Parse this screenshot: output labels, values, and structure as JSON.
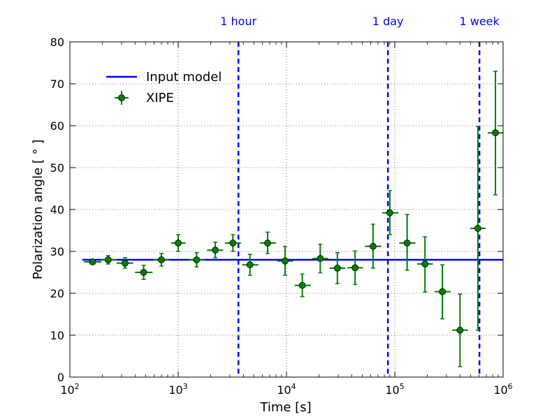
{
  "chart_data": {
    "type": "scatter",
    "xlabel": "Time [s]",
    "ylabel": "Polarization angle [ ° ]",
    "xscale": "log",
    "xlim": [
      100,
      1000000
    ],
    "ylim": [
      0,
      80
    ],
    "grid": true,
    "legend_position": "top-left",
    "x_ticks": [
      {
        "value": 100,
        "base": "10",
        "exp": "2"
      },
      {
        "value": 1000,
        "base": "10",
        "exp": "3"
      },
      {
        "value": 10000,
        "base": "10",
        "exp": "4"
      },
      {
        "value": 100000,
        "base": "10",
        "exp": "5"
      },
      {
        "value": 1000000,
        "base": "10",
        "exp": "6"
      }
    ],
    "y_ticks": [
      "0",
      "10",
      "20",
      "30",
      "40",
      "50",
      "60",
      "70",
      "80"
    ],
    "model": {
      "name": "Input model",
      "y": 28,
      "x_range": [
        130,
        1000000
      ],
      "color": "#0000ff"
    },
    "series": [
      {
        "name": "XIPE",
        "color": "#007f00",
        "points": [
          {
            "x": 162,
            "y": 27.5,
            "xlo": 135,
            "xhi": 195,
            "ylo": 27.0,
            "yhi": 28.0
          },
          {
            "x": 226,
            "y": 28.0,
            "xlo": 195,
            "xhi": 270,
            "ylo": 27.0,
            "yhi": 29.0
          },
          {
            "x": 323,
            "y": 27.2,
            "xlo": 270,
            "xhi": 385,
            "ylo": 26.0,
            "yhi": 28.5
          },
          {
            "x": 480,
            "y": 25.0,
            "xlo": 400,
            "xhi": 580,
            "ylo": 23.3,
            "yhi": 26.7
          },
          {
            "x": 700,
            "y": 28.0,
            "xlo": 590,
            "xhi": 830,
            "ylo": 26.5,
            "yhi": 29.5
          },
          {
            "x": 1000,
            "y": 32.0,
            "xlo": 860,
            "xhi": 1170,
            "ylo": 30.0,
            "yhi": 34.0
          },
          {
            "x": 1480,
            "y": 28.0,
            "xlo": 1250,
            "xhi": 1750,
            "ylo": 26.3,
            "yhi": 29.7
          },
          {
            "x": 2200,
            "y": 30.3,
            "xlo": 1850,
            "xhi": 2600,
            "ylo": 28.5,
            "yhi": 32.2
          },
          {
            "x": 3200,
            "y": 32.0,
            "xlo": 2700,
            "xhi": 3800,
            "ylo": 30.0,
            "yhi": 34.0
          },
          {
            "x": 4600,
            "y": 26.8,
            "xlo": 3900,
            "xhi": 5500,
            "ylo": 24.3,
            "yhi": 29.3
          },
          {
            "x": 6700,
            "y": 32.0,
            "xlo": 5700,
            "xhi": 8000,
            "ylo": 29.5,
            "yhi": 34.6
          },
          {
            "x": 9700,
            "y": 27.7,
            "xlo": 8200,
            "xhi": 11500,
            "ylo": 24.3,
            "yhi": 31.2
          },
          {
            "x": 14000,
            "y": 21.9,
            "xlo": 11900,
            "xhi": 16800,
            "ylo": 19.2,
            "yhi": 24.6
          },
          {
            "x": 20500,
            "y": 28.3,
            "xlo": 17300,
            "xhi": 24300,
            "ylo": 24.9,
            "yhi": 31.7
          },
          {
            "x": 29500,
            "y": 26.0,
            "xlo": 25000,
            "xhi": 35000,
            "ylo": 22.3,
            "yhi": 29.7
          },
          {
            "x": 43000,
            "y": 26.1,
            "xlo": 36500,
            "xhi": 51000,
            "ylo": 22.1,
            "yhi": 30.1
          },
          {
            "x": 63000,
            "y": 31.2,
            "xlo": 53000,
            "xhi": 75000,
            "ylo": 26.0,
            "yhi": 36.5
          },
          {
            "x": 90000,
            "y": 39.2,
            "xlo": 76500,
            "xhi": 108000,
            "ylo": 34.0,
            "yhi": 44.5
          },
          {
            "x": 130000,
            "y": 32.0,
            "xlo": 110000,
            "xhi": 155000,
            "ylo": 25.5,
            "yhi": 38.8
          },
          {
            "x": 190000,
            "y": 27.0,
            "xlo": 161000,
            "xhi": 225000,
            "ylo": 20.3,
            "yhi": 33.5
          },
          {
            "x": 275000,
            "y": 20.4,
            "xlo": 233000,
            "xhi": 327000,
            "ylo": 13.9,
            "yhi": 26.8
          },
          {
            "x": 400000,
            "y": 11.2,
            "xlo": 340000,
            "xhi": 475000,
            "ylo": 2.5,
            "yhi": 19.8
          },
          {
            "x": 585000,
            "y": 35.5,
            "xlo": 497000,
            "xhi": 690000,
            "ylo": 11.2,
            "yhi": 59.8
          },
          {
            "x": 850000,
            "y": 58.3,
            "xlo": 720000,
            "xhi": 1000000,
            "ylo": 43.5,
            "yhi": 73.0
          }
        ]
      }
    ],
    "vlines": [
      {
        "x": 3600,
        "label": "1 hour"
      },
      {
        "x": 86400,
        "label": "1 day"
      },
      {
        "x": 604800,
        "label": "1 week"
      }
    ]
  }
}
